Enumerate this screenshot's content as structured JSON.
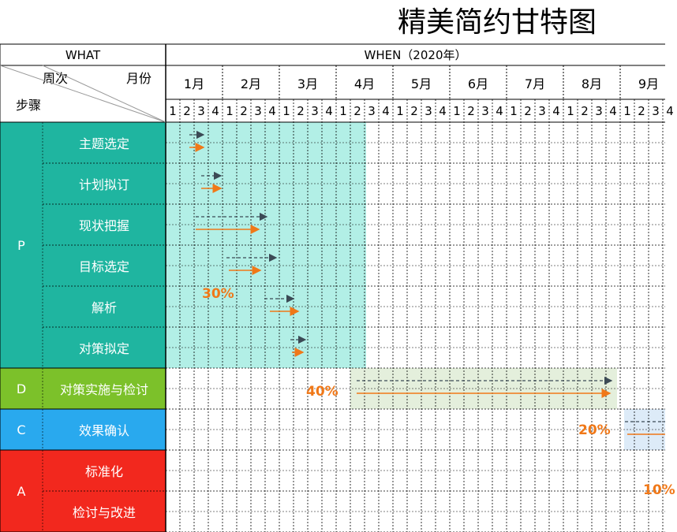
{
  "title": "精美简约甘特图",
  "header": {
    "what": "WHAT",
    "when": "WHEN（2020年）",
    "week_label": "周次",
    "month_label": "月份",
    "step_label": "步骤"
  },
  "months": [
    "1月",
    "2月",
    "3月",
    "4月",
    "5月",
    "6月",
    "7月",
    "8月",
    "9月"
  ],
  "weeks": [
    "1",
    "2",
    "3",
    "4"
  ],
  "phases": [
    {
      "code": "P",
      "color": "#1FB5A0",
      "tasks": [
        "主题选定",
        "计划拟订",
        "现状把握",
        "目标选定",
        "解析",
        "对策拟定"
      ]
    },
    {
      "code": "D",
      "color": "#7CC12A",
      "tasks": [
        "对策实施与检讨"
      ]
    },
    {
      "code": "C",
      "color": "#29A9EE",
      "tasks": [
        "效果确认"
      ]
    },
    {
      "code": "A",
      "color": "#F2281E",
      "tasks": [
        "标准化",
        "检讨与改进"
      ]
    }
  ],
  "percent_labels": [
    "30%",
    "40%",
    "20%",
    "10%"
  ],
  "colors": {
    "plan_arrow": "#3B4A55",
    "actual_arrow": "#F07818",
    "percent": "#F07818",
    "p_band": "#B2EFE6",
    "d_band": "#E4EFDC",
    "c_band": "#DDEBF8"
  }
}
